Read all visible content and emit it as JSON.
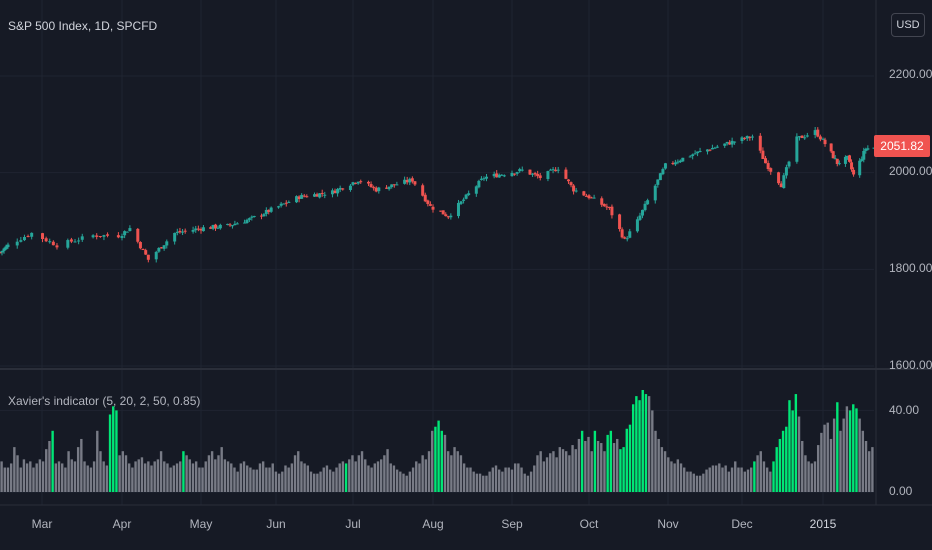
{
  "header": {
    "title": "S&P 500 Index, 1D, SPCFD",
    "currency_button": "USD",
    "last_price": "2051.82"
  },
  "colors": {
    "background": "#161a25",
    "grid": "#1f2431",
    "up_candle": "#26a69a",
    "down_candle": "#ef5350",
    "bar_default": "#787b86",
    "bar_signal": "#00e676",
    "price_tag": "#f05350"
  },
  "chart_data": [
    {
      "type": "candlestick",
      "title": "S&P 500 Index, 1D, SPCFD",
      "yticks": [
        "2200.00",
        "2000.00",
        "1800.00",
        "1600.00"
      ],
      "ylim": [
        1600,
        2260
      ],
      "xticks": [
        "Mar",
        "Apr",
        "May",
        "Jun",
        "Jul",
        "Aug",
        "Sep",
        "Oct",
        "Nov",
        "Dec",
        "2015"
      ],
      "last_price": 2051.82,
      "close_path": [
        [
          "2014-02-24",
          1835
        ],
        [
          "2014-03-07",
          1875
        ],
        [
          "2014-03-14",
          1850
        ],
        [
          "2014-03-24",
          1870
        ],
        [
          "2014-03-31",
          1870
        ],
        [
          "2014-04-04",
          1885
        ],
        [
          "2014-04-11",
          1820
        ],
        [
          "2014-04-21",
          1875
        ],
        [
          "2014-05-01",
          1885
        ],
        [
          "2014-05-12",
          1890
        ],
        [
          "2014-05-22",
          1905
        ],
        [
          "2014-06-02",
          1930
        ],
        [
          "2014-06-10",
          1950
        ],
        [
          "2014-06-23",
          1960
        ],
        [
          "2014-07-03",
          1985
        ],
        [
          "2014-07-10",
          1965
        ],
        [
          "2014-07-24",
          1985
        ],
        [
          "2014-07-31",
          1930
        ],
        [
          "2014-08-07",
          1910
        ],
        [
          "2014-08-21",
          1990
        ],
        [
          "2014-09-05",
          2005
        ],
        [
          "2014-09-12",
          1990
        ],
        [
          "2014-09-19",
          2010
        ],
        [
          "2014-09-25",
          1965
        ],
        [
          "2014-10-01",
          1950
        ],
        [
          "2014-10-09",
          1925
        ],
        [
          "2014-10-15",
          1860
        ],
        [
          "2014-10-20",
          1900
        ],
        [
          "2014-10-31",
          2015
        ],
        [
          "2014-11-12",
          2040
        ],
        [
          "2014-11-28",
          2065
        ],
        [
          "2014-12-05",
          2075
        ],
        [
          "2014-12-10",
          2020
        ],
        [
          "2014-12-16",
          1975
        ],
        [
          "2014-12-22",
          2070
        ],
        [
          "2014-12-29",
          2085
        ],
        [
          "2015-01-02",
          2060
        ],
        [
          "2015-01-08",
          2020
        ],
        [
          "2015-01-13",
          2030
        ],
        [
          "2015-01-16",
          1995
        ],
        [
          "2015-01-22",
          2050
        ],
        [
          "2015-01-26",
          2051.82
        ]
      ]
    },
    {
      "type": "bar",
      "title": "Xavier&#039;s indicator (5, 20, 2, 50, 0.85)",
      "yticks": [
        "40.00",
        "0.00"
      ],
      "ylim": [
        0,
        56
      ],
      "series": [
        {
          "values": [
            15,
            12,
            12,
            14,
            22,
            18,
            12,
            16,
            14,
            15,
            12,
            14,
            16,
            15,
            21,
            25,
            30,
            14,
            15,
            14,
            12,
            20,
            16,
            15,
            22,
            26,
            15,
            13,
            12,
            15,
            30,
            20,
            15,
            13,
            38,
            42,
            40,
            18,
            20,
            18,
            14,
            12,
            15,
            16,
            17,
            14,
            15,
            13,
            15,
            16,
            20,
            15,
            14,
            12,
            13,
            14,
            15,
            20,
            18,
            16,
            14,
            15,
            12,
            12,
            15,
            18,
            20,
            16,
            18,
            22,
            16,
            15,
            14,
            12,
            10,
            14,
            15,
            13,
            12,
            11,
            11,
            14,
            15,
            12,
            12,
            14,
            10,
            9,
            10,
            13,
            12,
            14,
            18,
            20,
            15,
            14,
            13,
            10,
            9,
            9,
            10,
            12,
            13,
            11,
            10,
            12,
            14,
            15,
            14,
            16,
            18,
            15,
            18,
            20,
            16,
            13,
            12,
            14,
            15,
            16,
            18,
            21,
            14,
            13,
            11,
            10,
            9,
            8,
            10,
            12,
            15,
            14,
            18,
            16,
            20,
            30,
            32,
            35,
            30,
            28,
            20,
            18,
            22,
            20,
            18,
            14,
            12,
            12,
            10,
            9,
            9,
            8,
            8,
            10,
            12,
            13,
            11,
            10,
            12,
            12,
            11,
            14,
            14,
            12,
            9,
            8,
            10,
            13,
            18,
            20,
            15,
            17,
            19,
            20,
            17,
            22,
            21,
            20,
            18,
            23,
            21,
            26,
            30,
            25,
            27,
            20,
            30,
            25,
            24,
            20,
            28,
            30,
            24,
            26,
            21,
            22,
            31,
            33,
            43,
            47,
            45,
            50,
            48,
            47,
            40,
            30,
            26,
            22,
            20,
            17,
            15,
            14,
            16,
            14,
            12,
            10,
            10,
            9,
            8,
            8,
            9,
            11,
            12,
            13,
            13,
            14,
            12,
            13,
            10,
            12,
            15,
            12,
            12,
            10,
            11,
            12,
            15,
            18,
            20,
            15,
            12,
            10,
            15,
            22,
            26,
            30,
            32,
            45,
            40,
            48,
            37,
            25,
            18,
            15,
            14,
            15,
            23,
            29,
            33,
            34,
            26,
            36,
            44,
            30,
            36,
            42,
            40,
            43,
            41,
            36,
            30,
            25,
            20,
            22
          ]
        },
        {
          "values_signal_flags": [
            0,
            0,
            0,
            0,
            0,
            0,
            0,
            0,
            0,
            0,
            0,
            0,
            0,
            0,
            0,
            0,
            1,
            0,
            0,
            0,
            0,
            0,
            0,
            0,
            0,
            0,
            0,
            0,
            0,
            0,
            0,
            0,
            0,
            0,
            1,
            1,
            1,
            0,
            0,
            0,
            0,
            0,
            0,
            0,
            0,
            0,
            0,
            0,
            0,
            0,
            0,
            0,
            0,
            0,
            0,
            0,
            0,
            1,
            0,
            0,
            0,
            0,
            0,
            0,
            0,
            0,
            0,
            0,
            0,
            0,
            0,
            0,
            0,
            0,
            0,
            0,
            0,
            0,
            0,
            0,
            0,
            0,
            0,
            0,
            0,
            0,
            0,
            0,
            0,
            0,
            0,
            0,
            0,
            0,
            0,
            0,
            0,
            0,
            0,
            0,
            0,
            0,
            0,
            0,
            0,
            0,
            0,
            0,
            1,
            0,
            0,
            0,
            0,
            0,
            0,
            0,
            0,
            0,
            0,
            0,
            0,
            0,
            0,
            0,
            0,
            0,
            0,
            0,
            0,
            0,
            0,
            0,
            0,
            0,
            0,
            0,
            1,
            1,
            1,
            0,
            0,
            0,
            0,
            0,
            0,
            0,
            0,
            0,
            0,
            0,
            0,
            0,
            0,
            0,
            0,
            0,
            0,
            0,
            0,
            0,
            0,
            0,
            0,
            0,
            0,
            0,
            0,
            0,
            0,
            0,
            0,
            0,
            0,
            0,
            0,
            0,
            0,
            0,
            0,
            0,
            0,
            0,
            1,
            0,
            0,
            0,
            1,
            0,
            0,
            0,
            1,
            1,
            0,
            0,
            1,
            1,
            1,
            1,
            1,
            1,
            1,
            1,
            1,
            0,
            0,
            0,
            0,
            0,
            0,
            0,
            0,
            0,
            0,
            0,
            0,
            0,
            0,
            0,
            0,
            0,
            0,
            0,
            0,
            0,
            0,
            0,
            0,
            0,
            0,
            0,
            0,
            0,
            0,
            0,
            0,
            0,
            1,
            0,
            0,
            0,
            0,
            0,
            1,
            1,
            1,
            1,
            1,
            1,
            1,
            1,
            0,
            0,
            0,
            0,
            0,
            0,
            0,
            0,
            0,
            0,
            0,
            0,
            1,
            0,
            0,
            0,
            1,
            1,
            1,
            0,
            0,
            0,
            0,
            0
          ]
        }
      ]
    }
  ]
}
